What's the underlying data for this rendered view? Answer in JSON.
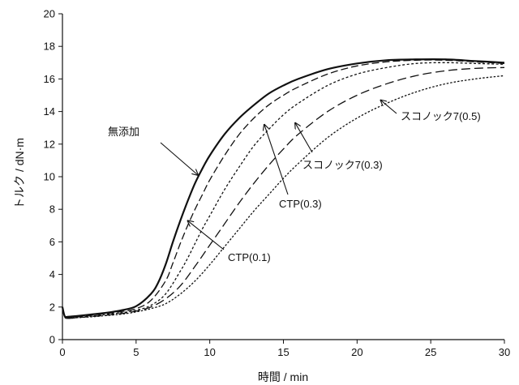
{
  "chart_data": {
    "type": "line",
    "title": "",
    "xlabel": "時間 / min",
    "ylabel": "トルク / dN·m",
    "xlim": [
      0,
      30
    ],
    "ylim": [
      0,
      20
    ],
    "x_ticks": [
      0,
      5,
      10,
      15,
      20,
      25,
      30
    ],
    "y_ticks": [
      0,
      2,
      4,
      6,
      8,
      10,
      12,
      14,
      16,
      18,
      20
    ],
    "grid": false,
    "legend": "none",
    "series": [
      {
        "name": "無添加",
        "style": "solid",
        "x": [
          0,
          0.15,
          0.35,
          1,
          2,
          3,
          4,
          5,
          6,
          6.5,
          7,
          7.5,
          8,
          8.5,
          9,
          9.5,
          10,
          11,
          12,
          13,
          14,
          15,
          16,
          18,
          20,
          22,
          24,
          26,
          28,
          30
        ],
        "y": [
          2.0,
          1.45,
          1.4,
          1.45,
          1.55,
          1.65,
          1.8,
          2.05,
          2.8,
          3.5,
          4.6,
          6.0,
          7.3,
          8.5,
          9.6,
          10.5,
          11.3,
          12.6,
          13.6,
          14.4,
          15.1,
          15.6,
          16.0,
          16.6,
          16.95,
          17.15,
          17.2,
          17.2,
          17.1,
          17.0
        ]
      },
      {
        "name": "CTP(0.1)",
        "style": "dashed",
        "x": [
          0,
          0.15,
          0.35,
          1,
          2,
          3,
          4,
          5,
          6,
          7,
          7.5,
          8,
          8.5,
          9,
          9.5,
          10,
          11,
          12,
          13,
          14,
          15,
          16,
          18,
          20,
          22,
          24,
          26,
          28,
          30
        ],
        "y": [
          2.0,
          1.42,
          1.35,
          1.4,
          1.5,
          1.6,
          1.72,
          1.9,
          2.4,
          3.6,
          4.7,
          5.9,
          7.0,
          8.0,
          8.9,
          9.8,
          11.3,
          12.6,
          13.6,
          14.4,
          15.0,
          15.5,
          16.3,
          16.8,
          17.05,
          17.15,
          17.15,
          17.05,
          16.95
        ]
      },
      {
        "name": "CTP(0.3)",
        "style": "dotted",
        "x": [
          0,
          0.15,
          0.35,
          1,
          2,
          3,
          4,
          5,
          6,
          7,
          8,
          8.5,
          9,
          9.5,
          10,
          11,
          12,
          13,
          14,
          15,
          16,
          18,
          20,
          22,
          24,
          26,
          28,
          30
        ],
        "y": [
          2.0,
          1.4,
          1.3,
          1.35,
          1.45,
          1.55,
          1.65,
          1.8,
          2.1,
          2.8,
          4.2,
          5.0,
          5.9,
          6.8,
          7.6,
          9.2,
          10.6,
          11.9,
          12.9,
          13.8,
          14.5,
          15.6,
          16.3,
          16.7,
          16.95,
          17.0,
          16.95,
          16.9
        ]
      },
      {
        "name": "スコノック7(0.3)",
        "style": "long-dash",
        "x": [
          0,
          0.15,
          0.35,
          1,
          2,
          3,
          4,
          5,
          6,
          7,
          8,
          9,
          10,
          11,
          12,
          13,
          14,
          15,
          16,
          18,
          20,
          22,
          24,
          26,
          28,
          30
        ],
        "y": [
          2.0,
          1.4,
          1.3,
          1.35,
          1.42,
          1.5,
          1.6,
          1.75,
          2.0,
          2.5,
          3.3,
          4.5,
          5.8,
          7.1,
          8.4,
          9.6,
          10.7,
          11.7,
          12.6,
          14.0,
          15.0,
          15.7,
          16.2,
          16.5,
          16.65,
          16.7
        ]
      },
      {
        "name": "スコノック7(0.5)",
        "style": "fine-dotted",
        "x": [
          0,
          0.15,
          0.35,
          1,
          2,
          3,
          4,
          5,
          6,
          7,
          8,
          9,
          10,
          11,
          12,
          13,
          14,
          15,
          16,
          18,
          20,
          22,
          24,
          26,
          28,
          30
        ],
        "y": [
          2.0,
          1.4,
          1.3,
          1.35,
          1.4,
          1.48,
          1.56,
          1.7,
          1.9,
          2.2,
          2.8,
          3.6,
          4.6,
          5.7,
          6.8,
          7.9,
          8.9,
          9.9,
          10.8,
          12.4,
          13.6,
          14.5,
          15.2,
          15.7,
          16.0,
          16.2
        ]
      }
    ],
    "annotations": [
      {
        "text": "無添加",
        "series": "無添加",
        "arrow_to": [
          9.2,
          10.1
        ]
      },
      {
        "text": "CTP(0.1)",
        "series": "CTP(0.1)",
        "arrow_to": [
          8.5,
          7.3
        ]
      },
      {
        "text": "CTP(0.3)",
        "series": "CTP(0.3)",
        "arrow_to": [
          13.7,
          13.2
        ]
      },
      {
        "text": "スコノック7(0.3)",
        "series": "スコノック7(0.3)",
        "arrow_to": [
          15.8,
          13.3
        ]
      },
      {
        "text": "スコノック7(0.5)",
        "series": "スコノック7(0.5)",
        "arrow_to": [
          21.6,
          14.7
        ]
      }
    ]
  }
}
